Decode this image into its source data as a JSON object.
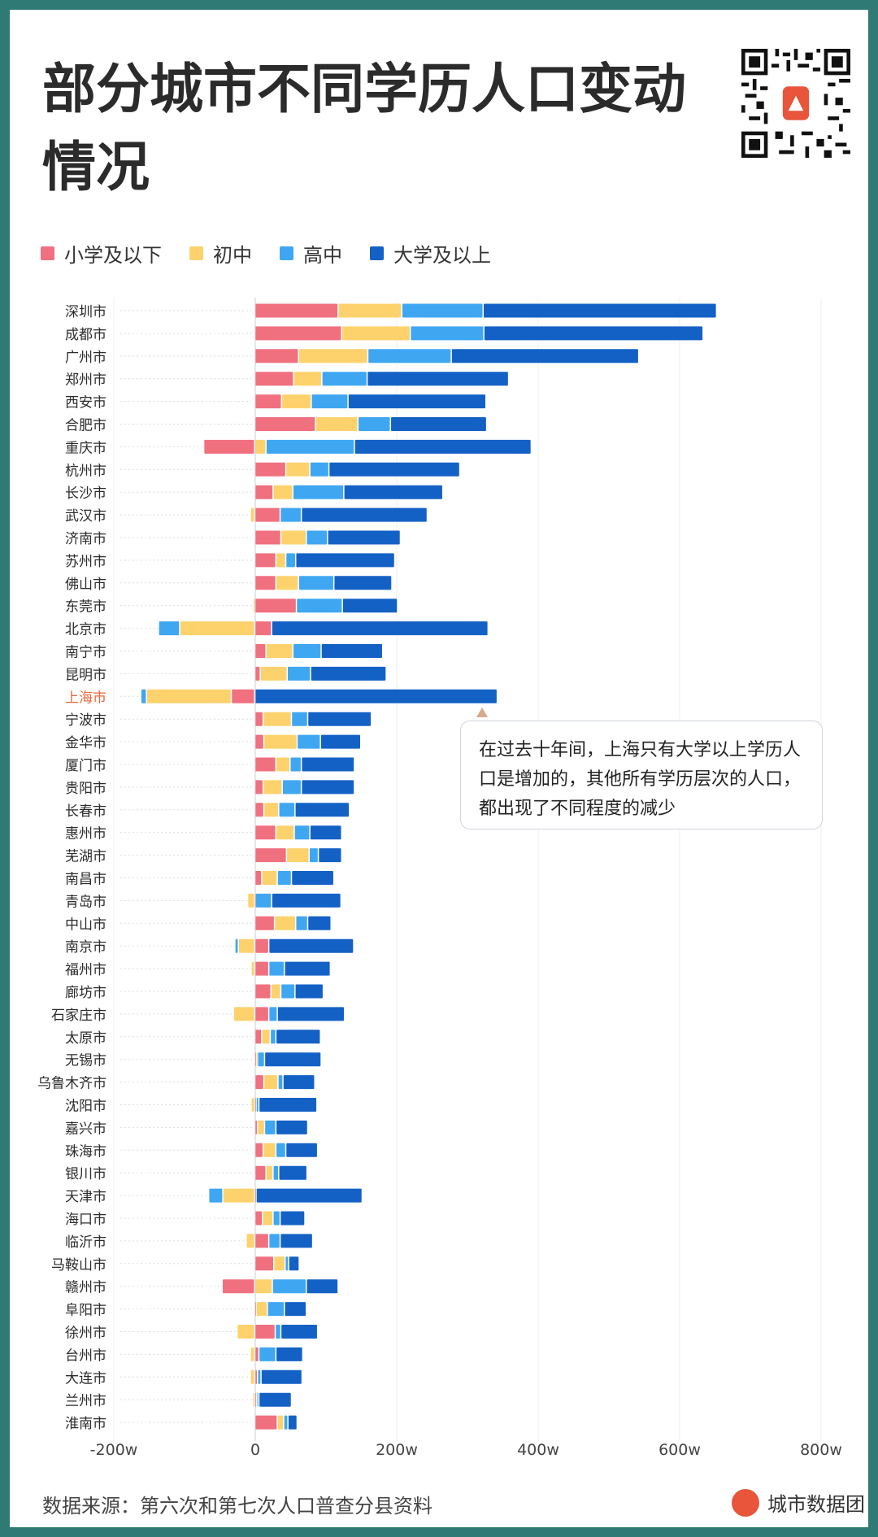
{
  "title": "部分城市不同学历人口变动情况",
  "source_text": "数据来源：第六次和第七次人口普查分县资料",
  "brand": "城市数据团",
  "callout": "在过去十年间，上海只有大学以上学历人口是增加的，其他所有学历层次的人口，都出现了不同程度的减少",
  "colors": {
    "primary": "#f07080",
    "middle": "#fdd26d",
    "high": "#3fa7f2",
    "college": "#1461c6",
    "highlight": "#e8683a",
    "text": "#2b2b2b"
  },
  "chart_data": {
    "type": "bar",
    "orientation": "horizontal",
    "stacked": true,
    "xlabel_unit": "w",
    "xlim": [
      -200,
      800
    ],
    "xticks": [
      -200,
      0,
      200,
      400,
      600,
      800
    ],
    "xtick_labels": [
      "-200w",
      "0",
      "200w",
      "400w",
      "600w",
      "800w"
    ],
    "highlight_category": "上海市",
    "legend": [
      "小学及以下",
      "初中",
      "高中",
      "大学及以上"
    ],
    "categories": [
      "深圳市",
      "成都市",
      "广州市",
      "郑州市",
      "西安市",
      "合肥市",
      "重庆市",
      "杭州市",
      "长沙市",
      "武汉市",
      "济南市",
      "苏州市",
      "佛山市",
      "东莞市",
      "北京市",
      "南宁市",
      "昆明市",
      "上海市",
      "宁波市",
      "金华市",
      "厦门市",
      "贵阳市",
      "长春市",
      "惠州市",
      "芜湖市",
      "南昌市",
      "青岛市",
      "中山市",
      "南京市",
      "福州市",
      "廊坊市",
      "石家庄市",
      "太原市",
      "无锡市",
      "乌鲁木齐市",
      "沈阳市",
      "嘉兴市",
      "珠海市",
      "银川市",
      "天津市",
      "海口市",
      "临沂市",
      "马鞍山市",
      "赣州市",
      "阜阳市",
      "徐州市",
      "台州市",
      "大连市",
      "兰州市",
      "淮南市"
    ],
    "series": [
      {
        "name": "小学及以下",
        "values": [
          118,
          123,
          62,
          55,
          38,
          86,
          -72,
          44,
          26,
          36,
          37,
          30,
          30,
          59,
          24,
          16,
          8,
          -33,
          12,
          13,
          30,
          12,
          13,
          30,
          45,
          10,
          1,
          28,
          20,
          20,
          23,
          20,
          10,
          2,
          13,
          2,
          4,
          12,
          16,
          2,
          11,
          20,
          27,
          -46,
          2,
          29,
          6,
          4,
          3,
          32
        ]
      },
      {
        "name": "初中",
        "values": [
          90,
          97,
          98,
          40,
          42,
          60,
          16,
          34,
          28,
          -6,
          36,
          14,
          32,
          -2,
          -106,
          38,
          38,
          -120,
          40,
          47,
          20,
          27,
          21,
          26,
          32,
          22,
          -10,
          30,
          -23,
          -5,
          14,
          -30,
          12,
          2,
          20,
          -5,
          10,
          18,
          10,
          -45,
          15,
          -12,
          16,
          25,
          16,
          -25,
          -6,
          -6,
          -3,
          9
        ]
      },
      {
        "name": "高中",
        "values": [
          115,
          104,
          118,
          64,
          52,
          46,
          125,
          27,
          72,
          30,
          30,
          14,
          50,
          65,
          -30,
          40,
          33,
          -8,
          23,
          33,
          16,
          27,
          23,
          22,
          13,
          20,
          23,
          17,
          -5,
          22,
          20,
          12,
          8,
          10,
          7,
          4,
          16,
          14,
          8,
          -20,
          10,
          16,
          5,
          48,
          24,
          8,
          24,
          5,
          3,
          6
        ]
      },
      {
        "name": "大学及以上",
        "values": [
          330,
          310,
          265,
          200,
          195,
          136,
          250,
          185,
          140,
          178,
          103,
          140,
          82,
          78,
          306,
          87,
          107,
          343,
          90,
          57,
          75,
          75,
          77,
          45,
          33,
          60,
          98,
          33,
          120,
          65,
          40,
          95,
          63,
          80,
          45,
          82,
          45,
          45,
          40,
          150,
          35,
          46,
          15,
          45,
          31,
          52,
          38,
          58,
          46,
          13
        ]
      }
    ]
  }
}
